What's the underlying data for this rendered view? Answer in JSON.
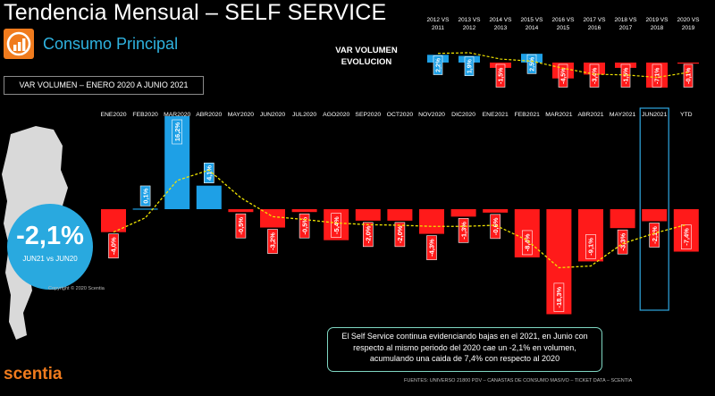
{
  "header": {
    "title": "Tendencia Mensual –  SELF SERVICE",
    "subtitle": "Consumo Principal",
    "period": "VAR VOLUMEN – ENERO 2020 A JUNIO 2021",
    "evolution_label_line1": "VAR VOLUMEN",
    "evolution_label_line2": "EVOLUCION"
  },
  "kpi": {
    "value": "-2,1%",
    "label": "JUN21 vs JUN20"
  },
  "copyright": "Copyright © 2020 Scentia",
  "comment": {
    "line1": "El Self Service continua evidenciando bajas en el 2021, en Junio con",
    "line2": "respecto al mismo periodo del 2020 cae un -2,1% en volumen,",
    "line3": "acumulando una caida de 7,4% con respecto al 2020"
  },
  "brand": "scentia",
  "footer": "FUENTES: UNIVERSO 21800 PDV – CANASTAS DE CONSUMO MASIVO – TICKET DATA  – SCENTIA",
  "colors": {
    "positive": "#1ea0e6",
    "negative": "#ff1a1a",
    "trend": "#f0e400",
    "accent": "#f07b1d",
    "kpi": "#29a9df"
  },
  "chart_data": [
    {
      "type": "bar",
      "title": "VAR VOLUMEN – ENERO 2020 A JUNIO 2021",
      "categories": [
        "ENE2020",
        "FEB2020",
        "MAR2020",
        "ABR2020",
        "MAY2020",
        "JUN2020",
        "JUL2020",
        "AGO2020",
        "SEP2020",
        "OCT2020",
        "NOV2020",
        "DIC2020",
        "ENE2021",
        "FEB2021",
        "MAR2021",
        "ABR2021",
        "MAY2021",
        "JUN2021",
        "YTD"
      ],
      "values": [
        -4.0,
        0.1,
        16.2,
        4.1,
        -0.5,
        -3.2,
        -0.5,
        -5.4,
        -2.0,
        -2.0,
        -4.3,
        -1.3,
        -0.6,
        -8.4,
        -18.3,
        -9.1,
        -3.3,
        -2.1,
        -7.4
      ],
      "labels": [
        "-4,0%",
        "0,1%",
        "16,2%",
        "4,1%",
        "-0,5%",
        "-3,2%",
        "-0,5%",
        "-5,4%",
        "-2,0%",
        "-2,0%",
        "-4,3%",
        "-1,3%",
        "-0,6%",
        "-8,4%",
        "-18,3%",
        "-9,1%",
        "-3,3%",
        "-2,1%",
        "-7,4%"
      ],
      "trend": [
        -4.0,
        -1.5,
        5.0,
        6.8,
        2.0,
        -1.3,
        -1.8,
        -2.4,
        -2.7,
        -2.8,
        -3.0,
        -3.0,
        -2.8,
        -5.4,
        -10.2,
        -9.9,
        -6.0,
        -4.2,
        -2.7
      ],
      "highlight": "JUN2021",
      "ylim": [
        -20,
        18
      ]
    },
    {
      "type": "bar",
      "title": "VAR VOLUMEN EVOLUCION",
      "categories": [
        [
          "2012 VS",
          "2011"
        ],
        [
          "2013 VS",
          "2012"
        ],
        [
          "2014 VS",
          "2013"
        ],
        [
          "2015 VS",
          "2014"
        ],
        [
          "2016 VS",
          "2015"
        ],
        [
          "2017 VS",
          "2016"
        ],
        [
          "2018 VS",
          "2017"
        ],
        [
          "2019 VS",
          "2018"
        ],
        [
          "2020 VS",
          "2019"
        ]
      ],
      "values": [
        2.2,
        1.9,
        -1.5,
        2.5,
        -4.5,
        -3.4,
        -1.5,
        -7.1,
        -0.1
      ],
      "labels": [
        "2,2%",
        "1,9%",
        "-1,5%",
        "2,5%",
        "-4,5%",
        "-3,4%",
        "-1,5%",
        "-7,1%",
        "-0,1%"
      ],
      "trend": [
        2.6,
        2.8,
        1.0,
        0.4,
        -1.6,
        -3.3,
        -3.5,
        -4.2,
        -2.8
      ],
      "ylim": [
        -8,
        4
      ]
    }
  ]
}
